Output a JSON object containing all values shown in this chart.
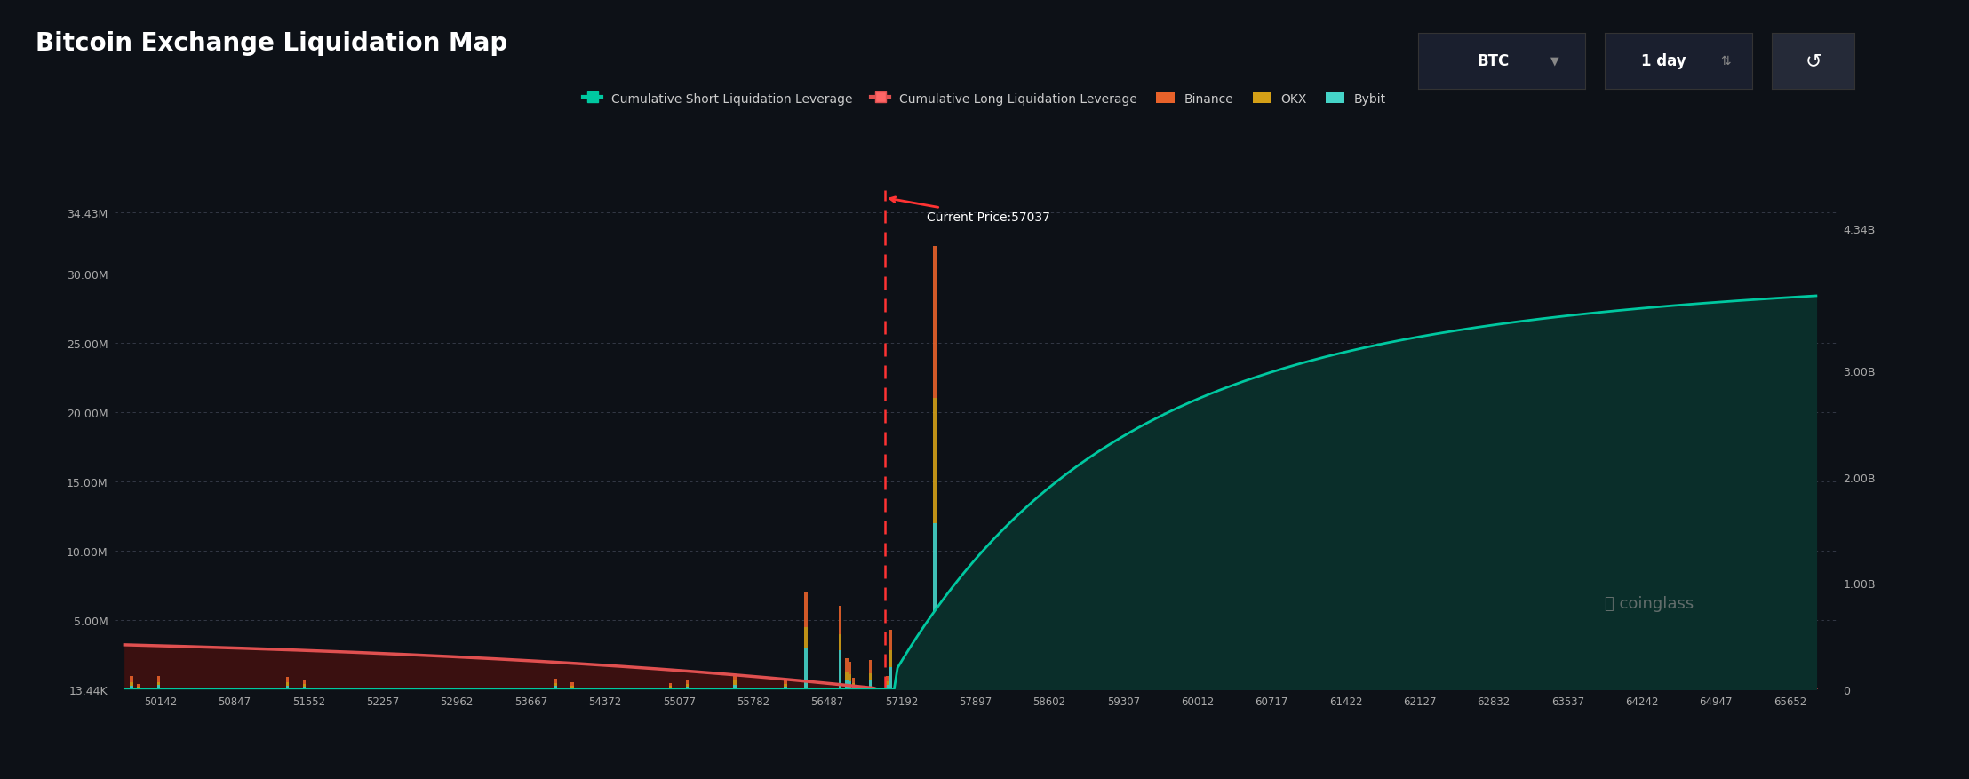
{
  "title": "Bitcoin Exchange Liquidation Map",
  "bg_color": "#0d1117",
  "plot_bg_color": "#0d1117",
  "grid_color": "#2a2e39",
  "text_color": "#ffffff",
  "current_price": 57037,
  "current_price_label": "Current Price:57037",
  "x_ticks": [
    50142,
    50847,
    51552,
    52257,
    52962,
    53667,
    54372,
    55077,
    55782,
    56487,
    57192,
    57897,
    58602,
    59307,
    60012,
    60717,
    61422,
    62127,
    62832,
    63537,
    64242,
    64947,
    65652
  ],
  "x_min": 49700,
  "x_max": 66100,
  "y_left_ticks": [
    "13.44K",
    "5.00M",
    "10.00M",
    "15.00M",
    "20.00M",
    "25.00M",
    "30.00M",
    "34.43M"
  ],
  "y_left_vals": [
    13440,
    5000000,
    10000000,
    15000000,
    20000000,
    25000000,
    30000000,
    34430000
  ],
  "y_left_min": 0,
  "y_left_max": 36000000,
  "y_right_ticks": [
    "0",
    "1.00B",
    "2.00B",
    "3.00B",
    "4.34B"
  ],
  "y_right_vals": [
    0,
    1000000000,
    2000000000,
    3000000000,
    4340000000
  ],
  "y_right_min": 0,
  "y_right_max": 4700000000,
  "bar_color_binance": "#e8622a",
  "bar_color_okx": "#d4a017",
  "bar_color_bybit": "#45d4c8",
  "line_color_short": "#00c8a0",
  "fill_color_short": "#0a2e2a",
  "line_color_long": "#e05050",
  "fill_color_long": "#3a1010",
  "dashed_line_color": "#ff3333",
  "annotation_color": "#ffffff"
}
